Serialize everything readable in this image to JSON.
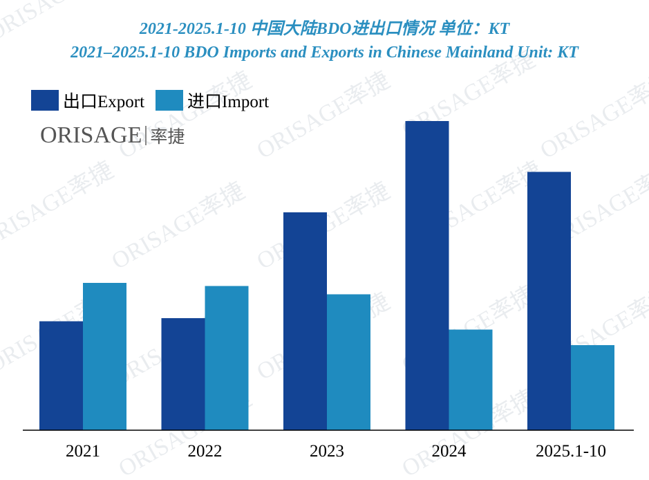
{
  "title_line_1": "2021-2025.1-10 中国大陆BDO进出口情况  单位：KT",
  "title_line_2": "2021–2025.1-10 BDO Imports and Exports in Chinese Mainland  Unit: KT",
  "logo": {
    "text": "ORISAGE",
    "cn": "率捷"
  },
  "watermark_text": "ORISAGE率捷",
  "colors": {
    "export": "#134495",
    "import": "#1f8bbf",
    "title": "#2b8fc0"
  },
  "chart_data": {
    "type": "bar",
    "categories": [
      "2021",
      "2022",
      "2023",
      "2024",
      "2025.1-10"
    ],
    "series": [
      {
        "name": "出口Export",
        "values": [
          105,
          108,
          210,
          298,
          249
        ]
      },
      {
        "name": "进口Import",
        "values": [
          142,
          139,
          131,
          97,
          82
        ]
      }
    ],
    "ylim": [
      0,
      300
    ],
    "grid": false,
    "legend": "top-left",
    "xlabel": "",
    "ylabel": ""
  }
}
